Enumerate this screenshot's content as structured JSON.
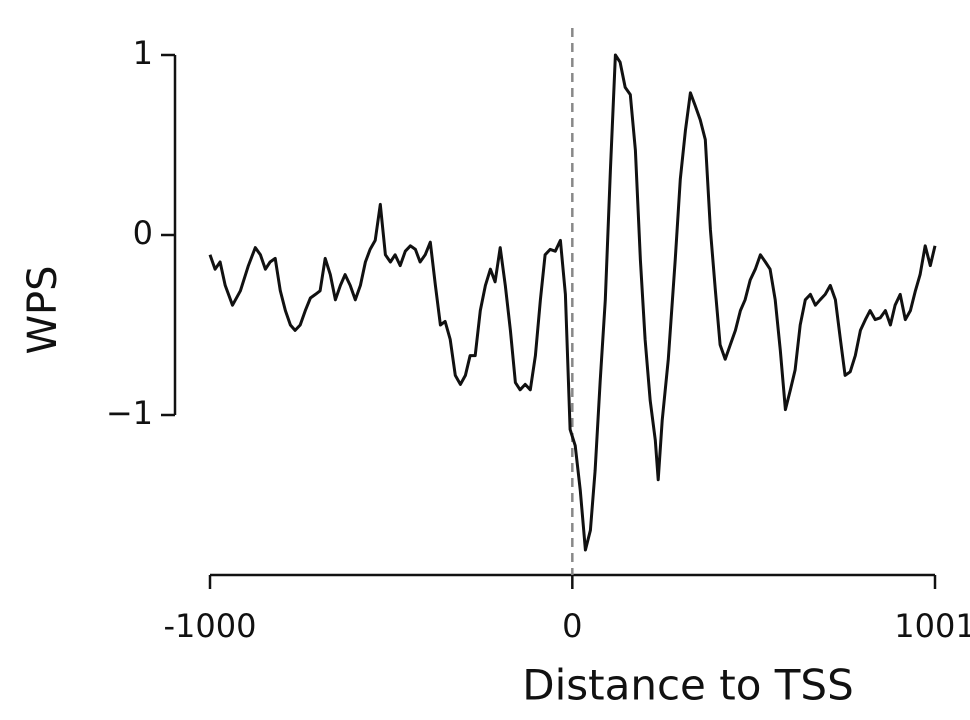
{
  "chart_data": {
    "type": "line",
    "xlabel": "Distance to TSS",
    "ylabel": "WPS",
    "x": [
      -1000,
      -986,
      -972,
      -958,
      -938,
      -916,
      -894,
      -875,
      -861,
      -847,
      -834,
      -820,
      -806,
      -792,
      -778,
      -765,
      -751,
      -737,
      -723,
      -709,
      -696,
      -682,
      -668,
      -654,
      -640,
      -627,
      -613,
      -599,
      -585,
      -571,
      -558,
      -544,
      -530,
      -516,
      -502,
      -489,
      -475,
      -461,
      -447,
      -433,
      -420,
      -406,
      -392,
      -378,
      -364,
      -351,
      -337,
      -323,
      -309,
      -295,
      -282,
      -268,
      -254,
      -240,
      -226,
      -213,
      -199,
      -185,
      -171,
      -157,
      -144,
      -130,
      -116,
      -102,
      -88,
      -75,
      -61,
      -47,
      -33,
      -19,
      -6,
      8,
      22,
      36,
      50,
      63,
      77,
      91,
      105,
      119,
      132,
      146,
      160,
      174,
      188,
      201,
      215,
      229,
      237,
      248,
      265,
      284,
      298,
      312,
      326,
      339,
      353,
      367,
      381,
      395,
      408,
      422,
      436,
      450,
      464,
      477,
      491,
      505,
      519,
      533,
      546,
      560,
      574,
      588,
      602,
      615,
      629,
      643,
      657,
      671,
      684,
      698,
      712,
      726,
      740,
      753,
      767,
      781,
      795,
      809,
      822,
      836,
      850,
      864,
      878,
      891,
      905,
      919,
      933,
      947,
      960,
      974,
      988,
      1001
    ],
    "series": [
      {
        "color": "#111111",
        "values": [
          -0.11,
          -0.19,
          -0.15,
          -0.28,
          -0.39,
          -0.31,
          -0.17,
          -0.07,
          -0.11,
          -0.19,
          -0.15,
          -0.13,
          -0.31,
          -0.42,
          -0.5,
          -0.53,
          -0.5,
          -0.42,
          -0.35,
          -0.33,
          -0.31,
          -0.13,
          -0.22,
          -0.36,
          -0.28,
          -0.22,
          -0.28,
          -0.36,
          -0.28,
          -0.15,
          -0.08,
          -0.03,
          0.17,
          -0.11,
          -0.15,
          -0.11,
          -0.17,
          -0.09,
          -0.06,
          -0.08,
          -0.15,
          -0.11,
          -0.04,
          -0.28,
          -0.5,
          -0.48,
          -0.58,
          -0.78,
          -0.83,
          -0.78,
          -0.67,
          -0.67,
          -0.42,
          -0.28,
          -0.19,
          -0.26,
          -0.07,
          -0.28,
          -0.53,
          -0.82,
          -0.86,
          -0.83,
          -0.86,
          -0.67,
          -0.36,
          -0.11,
          -0.08,
          -0.09,
          -0.03,
          -0.33,
          -1.08,
          -1.17,
          -1.42,
          -1.75,
          -1.64,
          -1.31,
          -0.81,
          -0.36,
          0.36,
          1.0,
          0.96,
          0.82,
          0.78,
          0.47,
          -0.14,
          -0.58,
          -0.92,
          -1.14,
          -1.36,
          -1.03,
          -0.69,
          -0.14,
          0.31,
          0.58,
          0.79,
          0.72,
          0.64,
          0.53,
          0.03,
          -0.31,
          -0.61,
          -0.69,
          -0.61,
          -0.53,
          -0.42,
          -0.36,
          -0.25,
          -0.19,
          -0.11,
          -0.15,
          -0.19,
          -0.36,
          -0.64,
          -0.97,
          -0.86,
          -0.75,
          -0.5,
          -0.36,
          -0.33,
          -0.39,
          -0.36,
          -0.33,
          -0.28,
          -0.36,
          -0.58,
          -0.78,
          -0.76,
          -0.67,
          -0.53,
          -0.47,
          -0.42,
          -0.47,
          -0.46,
          -0.42,
          -0.5,
          -0.39,
          -0.33,
          -0.47,
          -0.42,
          -0.31,
          -0.22,
          -0.06,
          -0.17,
          -0.06
        ]
      }
    ],
    "xlim": [
      -1000,
      1001
    ],
    "xticks": [
      -1000,
      0,
      1001
    ],
    "ylim": [
      -1.9,
      1.05
    ],
    "yticks": [
      {
        "value": -1,
        "label": "−1"
      },
      0,
      1
    ],
    "vline": 0,
    "vline_color": "#888888"
  }
}
